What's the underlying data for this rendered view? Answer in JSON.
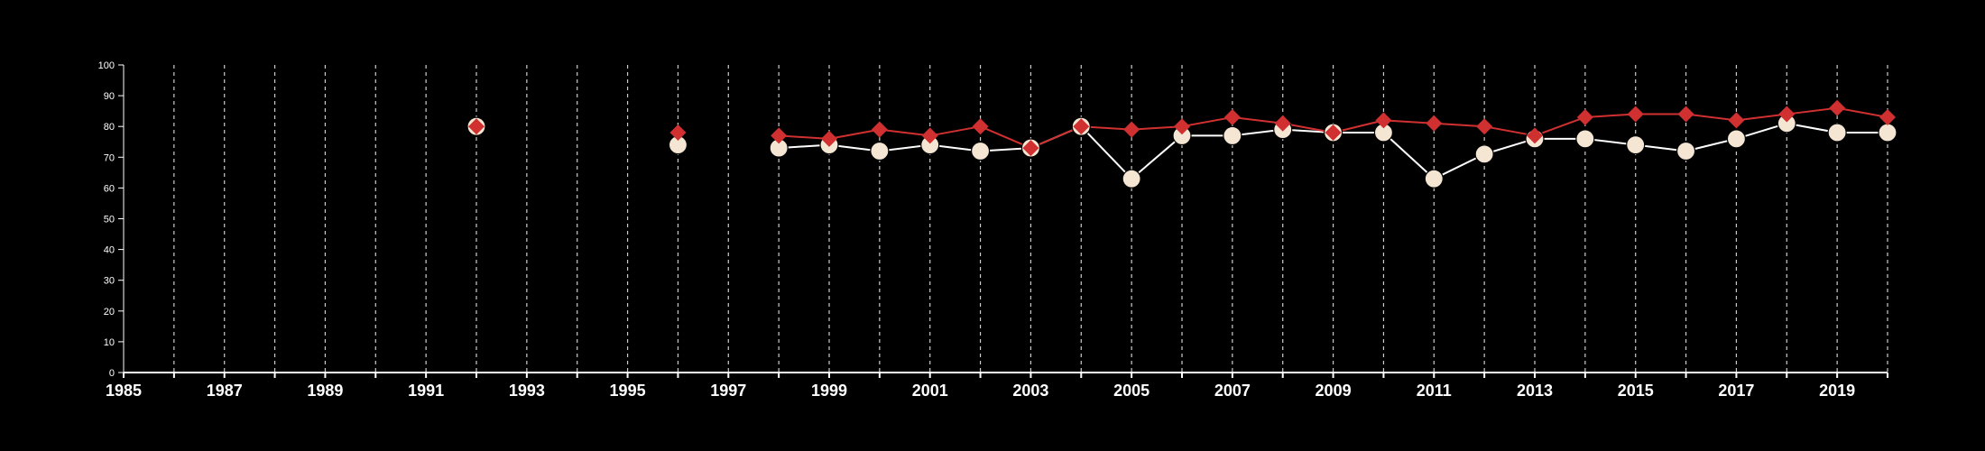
{
  "chart_data": {
    "type": "line",
    "title": "",
    "xlabel": "",
    "ylabel": "",
    "xlim": [
      1985,
      2020
    ],
    "ylim": [
      0,
      100
    ],
    "x_ticks": [
      1985,
      1987,
      1989,
      1991,
      1993,
      1995,
      1997,
      1999,
      2001,
      2003,
      2005,
      2007,
      2009,
      2011,
      2013,
      2015,
      2017,
      2019
    ],
    "y_ticks": [
      0,
      10,
      20,
      30,
      40,
      50,
      60,
      70,
      80,
      90,
      100
    ],
    "grid": "vertical dashed lines at every year",
    "colors": {
      "background": "#000000",
      "axis": "#ffffff",
      "grid": "#cccccc"
    },
    "series": [
      {
        "marker": "circle",
        "color": "#f5e6d3",
        "line_color": "#ffffff",
        "points": [
          [
            1992,
            80
          ],
          [
            1996,
            74
          ],
          [
            1998,
            73
          ],
          [
            1999,
            74
          ],
          [
            2000,
            72
          ],
          [
            2001,
            74
          ],
          [
            2002,
            72
          ],
          [
            2003,
            73
          ],
          [
            2004,
            80
          ],
          [
            2005,
            63
          ],
          [
            2006,
            77
          ],
          [
            2007,
            77
          ],
          [
            2008,
            79
          ],
          [
            2009,
            78
          ],
          [
            2010,
            78
          ],
          [
            2011,
            63
          ],
          [
            2012,
            71
          ],
          [
            2013,
            76
          ],
          [
            2014,
            76
          ],
          [
            2015,
            74
          ],
          [
            2016,
            72
          ],
          [
            2017,
            76
          ],
          [
            2018,
            81
          ],
          [
            2019,
            78
          ],
          [
            2020,
            78
          ]
        ]
      },
      {
        "marker": "diamond",
        "color": "#d03030",
        "line_color": "#d03030",
        "points": [
          [
            1992,
            80
          ],
          [
            1996,
            78
          ],
          [
            1998,
            77
          ],
          [
            1999,
            76
          ],
          [
            2000,
            79
          ],
          [
            2001,
            77
          ],
          [
            2002,
            80
          ],
          [
            2003,
            73
          ],
          [
            2004,
            80
          ],
          [
            2005,
            79
          ],
          [
            2006,
            80
          ],
          [
            2007,
            83
          ],
          [
            2008,
            81
          ],
          [
            2009,
            78
          ],
          [
            2010,
            82
          ],
          [
            2011,
            81
          ],
          [
            2012,
            80
          ],
          [
            2013,
            77
          ],
          [
            2014,
            83
          ],
          [
            2015,
            84
          ],
          [
            2016,
            84
          ],
          [
            2017,
            82
          ],
          [
            2018,
            84
          ],
          [
            2019,
            86
          ],
          [
            2020,
            83
          ]
        ]
      }
    ]
  }
}
